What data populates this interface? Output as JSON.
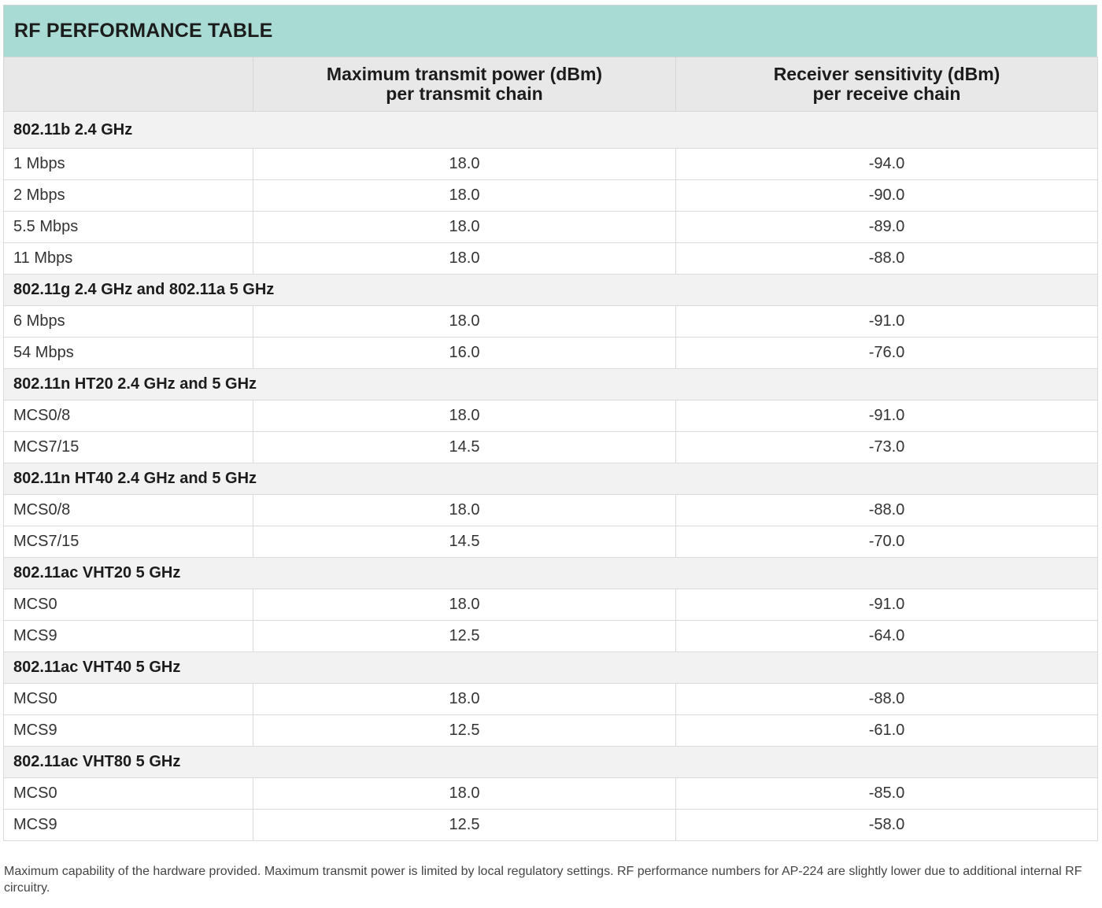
{
  "title": "RF PERFORMANCE TABLE",
  "header": {
    "col1": "",
    "col2_line1": "Maximum transmit power (dBm)",
    "col2_line2": "per transmit chain",
    "col3_line1": "Receiver sensitivity (dBm)",
    "col3_line2": "per receive chain"
  },
  "sections": [
    {
      "name": "802.11b 2.4 GHz",
      "rows": [
        {
          "rate": "1 Mbps",
          "tx": "18.0",
          "rx": "-94.0"
        },
        {
          "rate": "2 Mbps",
          "tx": "18.0",
          "rx": "-90.0"
        },
        {
          "rate": "5.5 Mbps",
          "tx": "18.0",
          "rx": "-89.0"
        },
        {
          "rate": "11 Mbps",
          "tx": "18.0",
          "rx": "-88.0"
        }
      ]
    },
    {
      "name": "802.11g 2.4 GHz and 802.11a 5 GHz",
      "rows": [
        {
          "rate": "6 Mbps",
          "tx": "18.0",
          "rx": "-91.0"
        },
        {
          "rate": "54 Mbps",
          "tx": "16.0",
          "rx": "-76.0"
        }
      ]
    },
    {
      "name": "802.11n HT20 2.4 GHz and 5 GHz",
      "rows": [
        {
          "rate": "MCS0/8",
          "tx": "18.0",
          "rx": "-91.0"
        },
        {
          "rate": "MCS7/15",
          "tx": "14.5",
          "rx": "-73.0"
        }
      ]
    },
    {
      "name": "802.11n HT40 2.4 GHz and 5 GHz",
      "rows": [
        {
          "rate": "MCS0/8",
          "tx": "18.0",
          "rx": "-88.0"
        },
        {
          "rate": "MCS7/15",
          "tx": "14.5",
          "rx": "-70.0"
        }
      ]
    },
    {
      "name": "802.11ac VHT20 5 GHz",
      "rows": [
        {
          "rate": "MCS0",
          "tx": "18.0",
          "rx": "-91.0"
        },
        {
          "rate": "MCS9",
          "tx": "12.5",
          "rx": "-64.0"
        }
      ]
    },
    {
      "name": "802.11ac VHT40 5 GHz",
      "rows": [
        {
          "rate": "MCS0",
          "tx": "18.0",
          "rx": "-88.0"
        },
        {
          "rate": "MCS9",
          "tx": "12.5",
          "rx": "-61.0"
        }
      ]
    },
    {
      "name": "802.11ac VHT80 5 GHz",
      "rows": [
        {
          "rate": "MCS0",
          "tx": "18.0",
          "rx": "-85.0"
        },
        {
          "rate": "MCS9",
          "tx": "12.5",
          "rx": "-58.0"
        }
      ]
    }
  ],
  "footnote": "Maximum capability of the hardware provided. Maximum transmit power is limited by local regulatory settings. RF performance numbers for AP-224 are slightly lower due to additional internal RF circuitry.",
  "colors": {
    "title_bg": "#a8dbd4",
    "header_bg": "#e8e8e8",
    "section_bg": "#f2f2f2"
  }
}
